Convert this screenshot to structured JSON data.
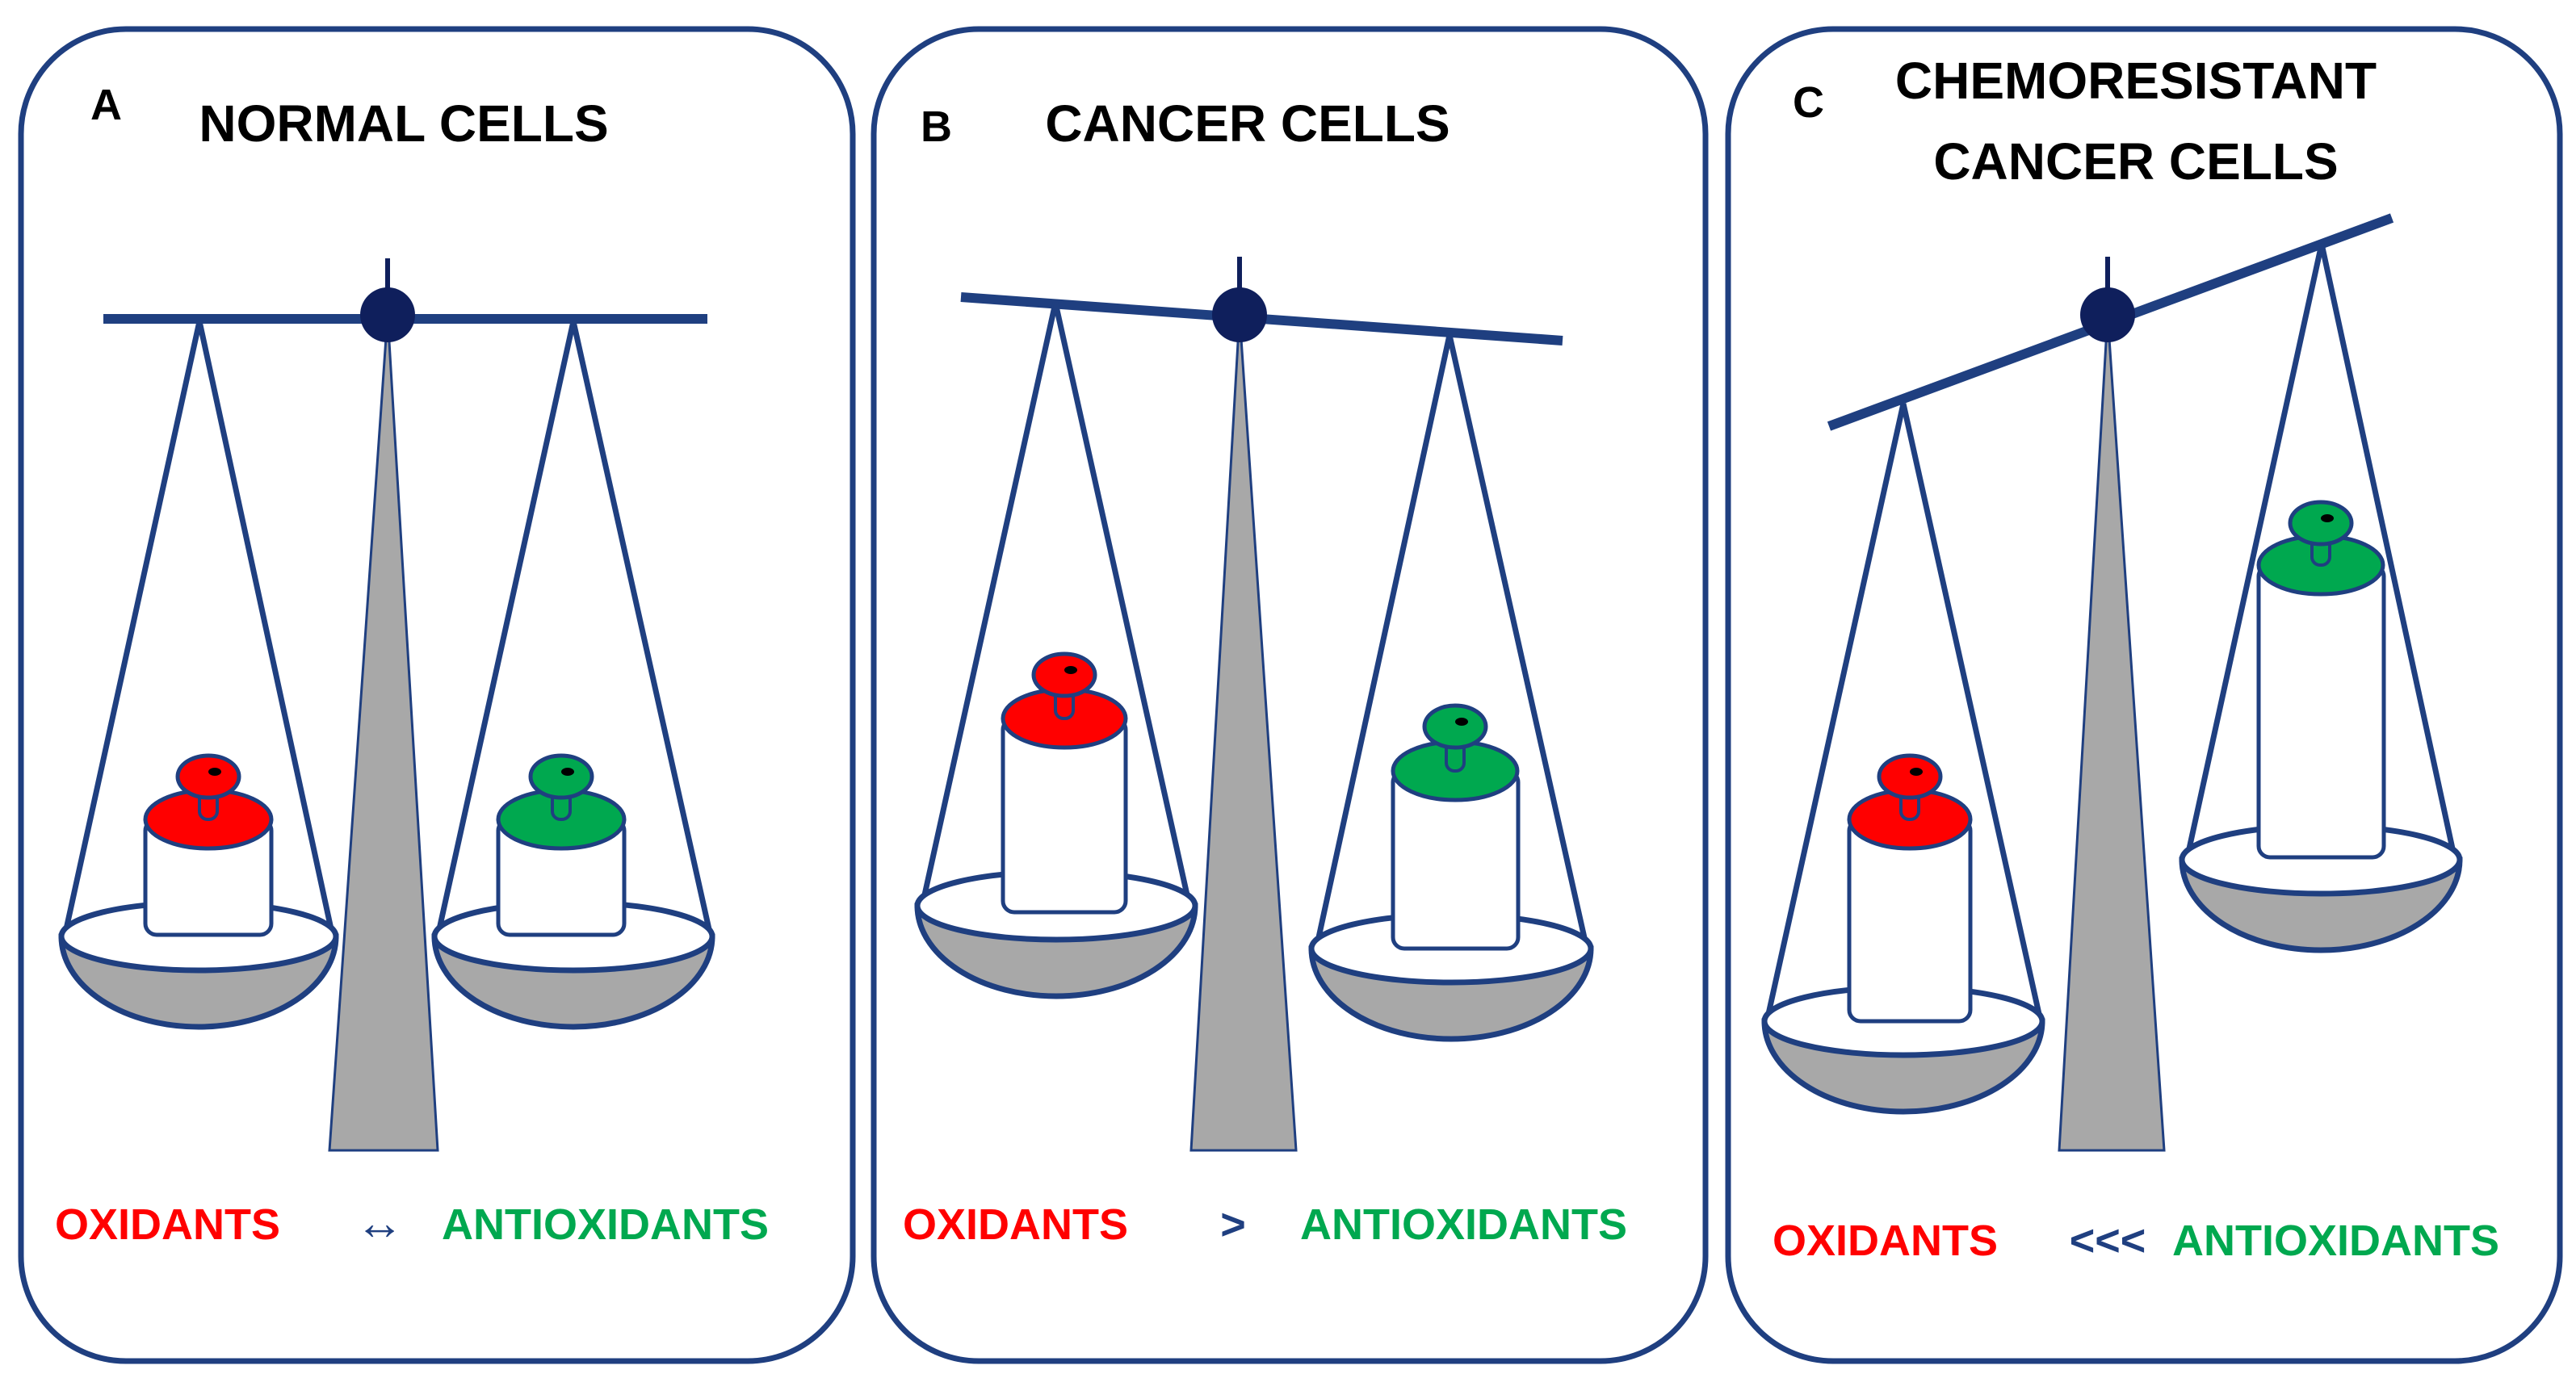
{
  "colors": {
    "navy": "#1f3f80",
    "dark_navy": "#0f1f5c",
    "grey": "#a8a8a8",
    "red": "#ff0000",
    "green": "#00a84f",
    "white": "#ffffff"
  },
  "panels": [
    {
      "letter": "A",
      "title_lines": [
        "NORMAL CELLS"
      ],
      "oxidants_label": "OXIDANTS",
      "relation_symbol": "↔",
      "antioxidants_label": "ANTIOXIDANTS",
      "balance_state": "balanced"
    },
    {
      "letter": "B",
      "title_lines": [
        "CANCER CELLS"
      ],
      "oxidants_label": "OXIDANTS",
      "relation_symbol": ">",
      "antioxidants_label": "ANTIOXIDANTS",
      "balance_state": "tilted toward oxidants"
    },
    {
      "letter": "C",
      "title_lines": [
        "CHEMORESISTANT",
        "CANCER CELLS"
      ],
      "oxidants_label": "OXIDANTS",
      "relation_symbol": "<<<",
      "antioxidants_label": "ANTIOXIDANTS",
      "balance_state": "tilted toward antioxidants"
    }
  ]
}
